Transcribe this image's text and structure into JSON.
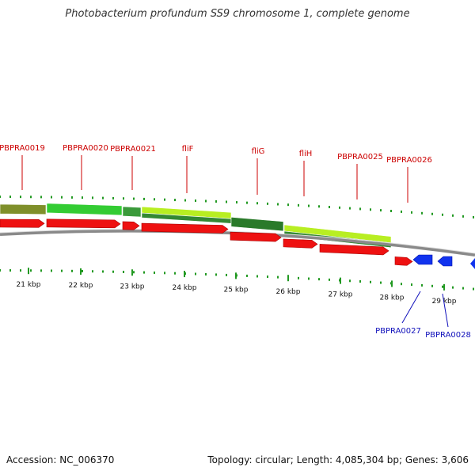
{
  "title": "Photobacterium profundum SS9 chromosome 1, complete genome",
  "footer": {
    "accession": "Accession: NC_006370",
    "summary": "Topology: circular; Length: 4,085,304 bp; Genes: 3,606"
  },
  "colors": {
    "forward_gene": "#ee1111",
    "reverse_gene": "#1133ee",
    "forward_label": "#cc0000",
    "reverse_label": "#1111bb",
    "tick": "#229922",
    "backbone": "#8a8a8a"
  },
  "scale": {
    "ticks": [
      {
        "label": "21 kbp",
        "kbp": 21
      },
      {
        "label": "22 kbp",
        "kbp": 22
      },
      {
        "label": "23 kbp",
        "kbp": 23
      },
      {
        "label": "24 kbp",
        "kbp": 24
      },
      {
        "label": "25 kbp",
        "kbp": 25
      },
      {
        "label": "26 kbp",
        "kbp": 26
      },
      {
        "label": "27 kbp",
        "kbp": 27
      },
      {
        "label": "28 kbp",
        "kbp": 28
      },
      {
        "label": "29 kbp",
        "kbp": 29
      }
    ]
  },
  "genes": [
    {
      "name": "PBPRA0019",
      "strand": "+"
    },
    {
      "name": "PBPRA0020",
      "strand": "+"
    },
    {
      "name": "PBPRA0021",
      "strand": "+"
    },
    {
      "name": "fliF",
      "strand": "+"
    },
    {
      "name": "fliG",
      "strand": "+"
    },
    {
      "name": "fliH",
      "strand": "+"
    },
    {
      "name": "PBPRA0025",
      "strand": "+"
    },
    {
      "name": "PBPRA0026",
      "strand": "+"
    },
    {
      "name": "PBPRA0027",
      "strand": "-"
    },
    {
      "name": "PBPRA0028",
      "strand": "-"
    }
  ]
}
